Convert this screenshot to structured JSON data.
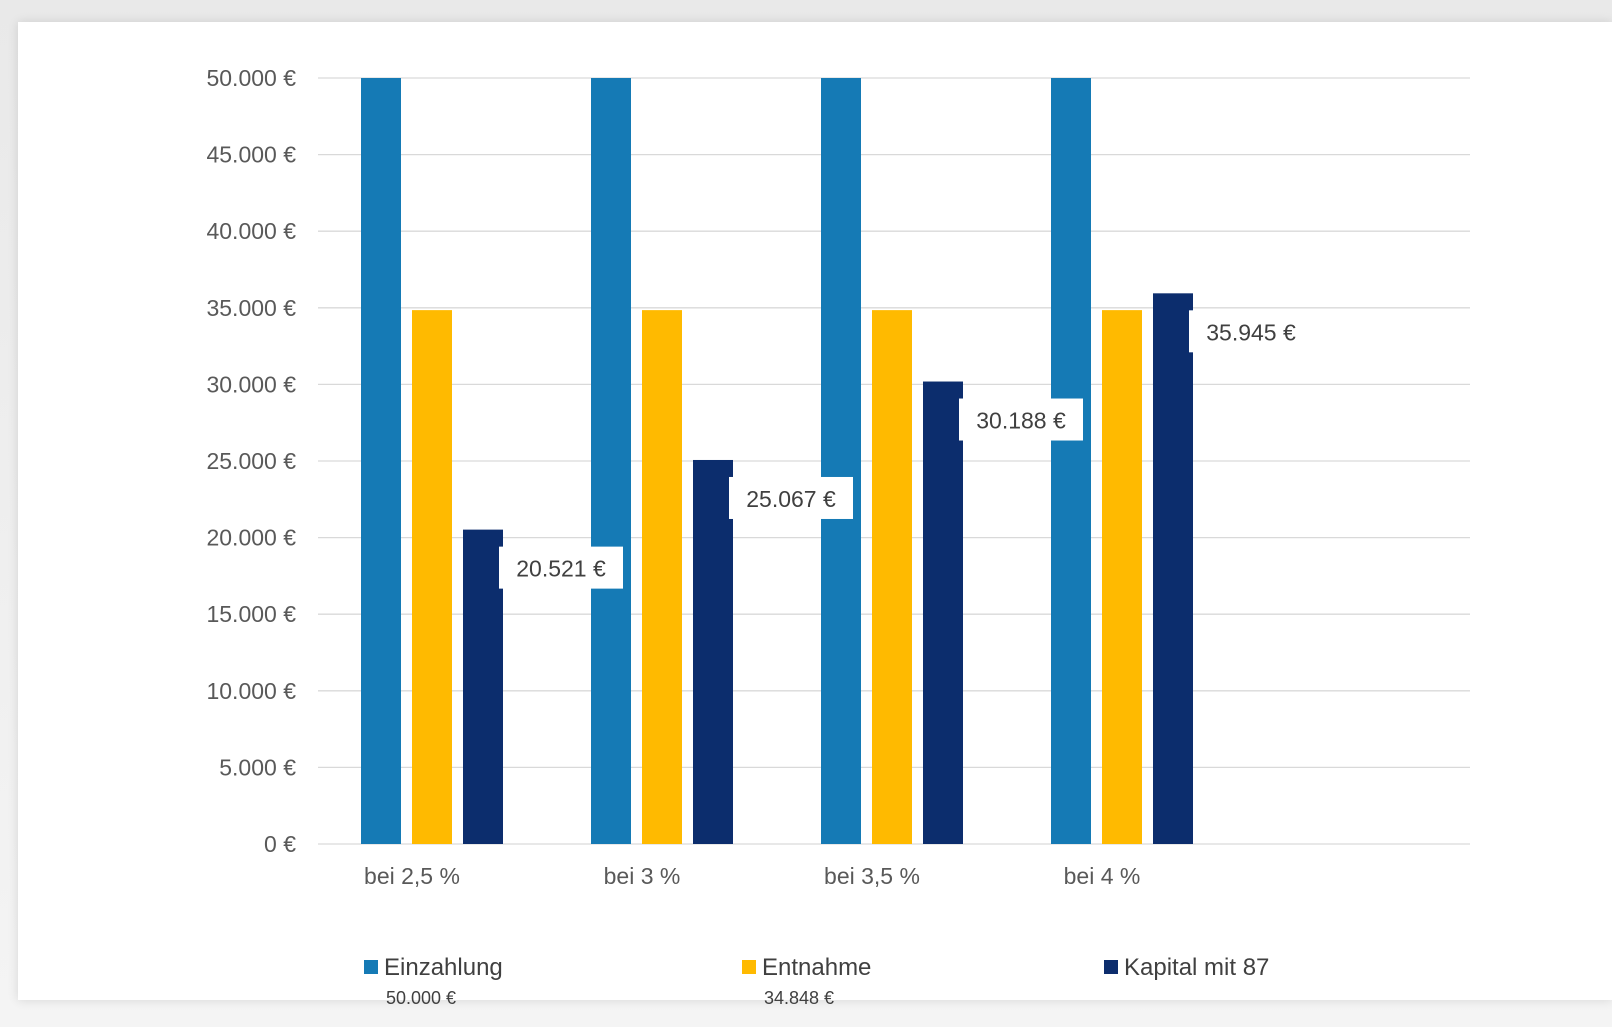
{
  "chart_data": {
    "type": "bar",
    "categories": [
      "bei 2,5 %",
      "bei 3 %",
      "bei 3,5 %",
      "bei 4 %"
    ],
    "series": [
      {
        "name": "Einzahlung",
        "color": "#157AB5",
        "values": [
          50000,
          50000,
          50000,
          50000
        ],
        "data_labels": [],
        "legend_sub": "50.000 €"
      },
      {
        "name": "Entnahme",
        "color": "#FFBA00",
        "values": [
          34848,
          34848,
          34848,
          34848
        ],
        "data_labels": [],
        "legend_sub": "34.848 €"
      },
      {
        "name": "Kapital mit 87",
        "color": "#0C2D6D",
        "values": [
          20521,
          25067,
          30188,
          35945
        ],
        "data_labels": [
          "20.521 €",
          "25.067 €",
          "30.188 €",
          "35.945 €"
        ],
        "legend_sub": ""
      }
    ],
    "y_ticks": [
      "0 €",
      "5.000 €",
      "10.000 €",
      "15.000 €",
      "20.000 €",
      "25.000 €",
      "30.000 €",
      "35.000 €",
      "40.000 €",
      "45.000 €",
      "50.000 €"
    ],
    "ylim": [
      0,
      50000
    ],
    "grid": true,
    "legend_position": "bottom",
    "title": "",
    "xlabel": "",
    "ylabel": ""
  }
}
